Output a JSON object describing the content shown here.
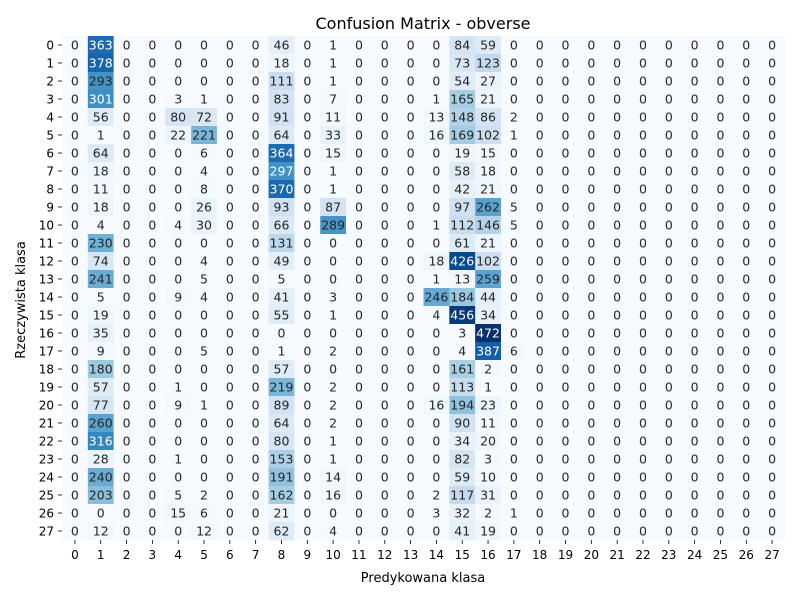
{
  "chart_data": {
    "type": "heatmap",
    "title": "Confusion Matrix - obverse",
    "xlabel": "Predykowana klasa",
    "ylabel": "Rzeczywista klasa",
    "x_categories": [
      "0",
      "1",
      "2",
      "3",
      "4",
      "5",
      "6",
      "7",
      "8",
      "9",
      "10",
      "11",
      "12",
      "13",
      "14",
      "15",
      "16",
      "17",
      "18",
      "19",
      "20",
      "21",
      "22",
      "23",
      "24",
      "25",
      "26",
      "27"
    ],
    "y_categories": [
      "0",
      "1",
      "2",
      "3",
      "4",
      "5",
      "6",
      "7",
      "8",
      "9",
      "10",
      "11",
      "12",
      "13",
      "14",
      "15",
      "16",
      "17",
      "18",
      "19",
      "20",
      "21",
      "22",
      "23",
      "24",
      "25",
      "26",
      "27"
    ],
    "colormap": "Blues",
    "vmin": 0,
    "vmax": 472,
    "colorbar": false,
    "values": [
      [
        0,
        363,
        0,
        0,
        0,
        0,
        0,
        0,
        46,
        0,
        1,
        0,
        0,
        0,
        0,
        84,
        59,
        0,
        0,
        0,
        0,
        0,
        0,
        0,
        0,
        0,
        0,
        0
      ],
      [
        0,
        378,
        0,
        0,
        0,
        0,
        0,
        0,
        18,
        0,
        1,
        0,
        0,
        0,
        0,
        73,
        123,
        0,
        0,
        0,
        0,
        0,
        0,
        0,
        0,
        0,
        0,
        0
      ],
      [
        0,
        293,
        0,
        0,
        0,
        0,
        0,
        0,
        111,
        0,
        1,
        0,
        0,
        0,
        0,
        54,
        27,
        0,
        0,
        0,
        0,
        0,
        0,
        0,
        0,
        0,
        0,
        0
      ],
      [
        0,
        301,
        0,
        0,
        3,
        1,
        0,
        0,
        83,
        0,
        7,
        0,
        0,
        0,
        1,
        165,
        21,
        0,
        0,
        0,
        0,
        0,
        0,
        0,
        0,
        0,
        0,
        0
      ],
      [
        0,
        56,
        0,
        0,
        80,
        72,
        0,
        0,
        91,
        0,
        11,
        0,
        0,
        0,
        13,
        148,
        86,
        2,
        0,
        0,
        0,
        0,
        0,
        0,
        0,
        0,
        0,
        0
      ],
      [
        0,
        1,
        0,
        0,
        22,
        221,
        0,
        0,
        64,
        0,
        33,
        0,
        0,
        0,
        16,
        169,
        102,
        1,
        0,
        0,
        0,
        0,
        0,
        0,
        0,
        0,
        0,
        0
      ],
      [
        0,
        64,
        0,
        0,
        0,
        6,
        0,
        0,
        364,
        0,
        15,
        0,
        0,
        0,
        0,
        19,
        15,
        0,
        0,
        0,
        0,
        0,
        0,
        0,
        0,
        0,
        0,
        0
      ],
      [
        0,
        18,
        0,
        0,
        0,
        4,
        0,
        0,
        297,
        0,
        1,
        0,
        0,
        0,
        0,
        58,
        18,
        0,
        0,
        0,
        0,
        0,
        0,
        0,
        0,
        0,
        0,
        0
      ],
      [
        0,
        11,
        0,
        0,
        0,
        8,
        0,
        0,
        370,
        0,
        1,
        0,
        0,
        0,
        0,
        42,
        21,
        0,
        0,
        0,
        0,
        0,
        0,
        0,
        0,
        0,
        0,
        0
      ],
      [
        0,
        18,
        0,
        0,
        0,
        26,
        0,
        0,
        93,
        0,
        87,
        0,
        0,
        0,
        0,
        97,
        262,
        5,
        0,
        0,
        0,
        0,
        0,
        0,
        0,
        0,
        0,
        0
      ],
      [
        0,
        4,
        0,
        0,
        4,
        30,
        0,
        0,
        66,
        0,
        289,
        0,
        0,
        0,
        1,
        112,
        146,
        5,
        0,
        0,
        0,
        0,
        0,
        0,
        0,
        0,
        0,
        0
      ],
      [
        0,
        230,
        0,
        0,
        0,
        0,
        0,
        0,
        131,
        0,
        0,
        0,
        0,
        0,
        0,
        61,
        21,
        0,
        0,
        0,
        0,
        0,
        0,
        0,
        0,
        0,
        0,
        0
      ],
      [
        0,
        74,
        0,
        0,
        0,
        4,
        0,
        0,
        49,
        0,
        0,
        0,
        0,
        0,
        18,
        426,
        102,
        0,
        0,
        0,
        0,
        0,
        0,
        0,
        0,
        0,
        0,
        0
      ],
      [
        0,
        241,
        0,
        0,
        0,
        5,
        0,
        0,
        5,
        0,
        0,
        0,
        0,
        0,
        1,
        13,
        259,
        0,
        0,
        0,
        0,
        0,
        0,
        0,
        0,
        0,
        0,
        0
      ],
      [
        0,
        5,
        0,
        0,
        9,
        4,
        0,
        0,
        41,
        0,
        3,
        0,
        0,
        0,
        246,
        184,
        44,
        0,
        0,
        0,
        0,
        0,
        0,
        0,
        0,
        0,
        0,
        0
      ],
      [
        0,
        19,
        0,
        0,
        0,
        0,
        0,
        0,
        55,
        0,
        1,
        0,
        0,
        0,
        4,
        456,
        34,
        0,
        0,
        0,
        0,
        0,
        0,
        0,
        0,
        0,
        0,
        0
      ],
      [
        0,
        35,
        0,
        0,
        0,
        0,
        0,
        0,
        0,
        0,
        0,
        0,
        0,
        0,
        0,
        3,
        472,
        0,
        0,
        0,
        0,
        0,
        0,
        0,
        0,
        0,
        0,
        0
      ],
      [
        0,
        9,
        0,
        0,
        0,
        5,
        0,
        0,
        1,
        0,
        2,
        0,
        0,
        0,
        0,
        4,
        387,
        6,
        0,
        0,
        0,
        0,
        0,
        0,
        0,
        0,
        0,
        0
      ],
      [
        0,
        180,
        0,
        0,
        0,
        0,
        0,
        0,
        57,
        0,
        0,
        0,
        0,
        0,
        0,
        161,
        2,
        0,
        0,
        0,
        0,
        0,
        0,
        0,
        0,
        0,
        0,
        0
      ],
      [
        0,
        57,
        0,
        0,
        1,
        0,
        0,
        0,
        219,
        0,
        2,
        0,
        0,
        0,
        0,
        113,
        1,
        0,
        0,
        0,
        0,
        0,
        0,
        0,
        0,
        0,
        0,
        0
      ],
      [
        0,
        77,
        0,
        0,
        9,
        1,
        0,
        0,
        89,
        0,
        2,
        0,
        0,
        0,
        16,
        194,
        23,
        0,
        0,
        0,
        0,
        0,
        0,
        0,
        0,
        0,
        0,
        0
      ],
      [
        0,
        260,
        0,
        0,
        0,
        0,
        0,
        0,
        64,
        0,
        2,
        0,
        0,
        0,
        0,
        90,
        11,
        0,
        0,
        0,
        0,
        0,
        0,
        0,
        0,
        0,
        0,
        0
      ],
      [
        0,
        316,
        0,
        0,
        0,
        0,
        0,
        0,
        80,
        0,
        1,
        0,
        0,
        0,
        0,
        34,
        20,
        0,
        0,
        0,
        0,
        0,
        0,
        0,
        0,
        0,
        0,
        0
      ],
      [
        0,
        28,
        0,
        0,
        1,
        0,
        0,
        0,
        153,
        0,
        1,
        0,
        0,
        0,
        0,
        82,
        3,
        0,
        0,
        0,
        0,
        0,
        0,
        0,
        0,
        0,
        0,
        0
      ],
      [
        0,
        240,
        0,
        0,
        0,
        0,
        0,
        0,
        191,
        0,
        14,
        0,
        0,
        0,
        0,
        59,
        10,
        0,
        0,
        0,
        0,
        0,
        0,
        0,
        0,
        0,
        0,
        0
      ],
      [
        0,
        203,
        0,
        0,
        5,
        2,
        0,
        0,
        162,
        0,
        16,
        0,
        0,
        0,
        2,
        117,
        31,
        0,
        0,
        0,
        0,
        0,
        0,
        0,
        0,
        0,
        0,
        0
      ],
      [
        0,
        0,
        0,
        0,
        15,
        6,
        0,
        0,
        21,
        0,
        0,
        0,
        0,
        0,
        3,
        32,
        2,
        1,
        0,
        0,
        0,
        0,
        0,
        0,
        0,
        0,
        0,
        0
      ],
      [
        0,
        12,
        0,
        0,
        0,
        12,
        0,
        0,
        62,
        0,
        4,
        0,
        0,
        0,
        0,
        41,
        19,
        0,
        0,
        0,
        0,
        0,
        0,
        0,
        0,
        0,
        0,
        0
      ]
    ]
  }
}
